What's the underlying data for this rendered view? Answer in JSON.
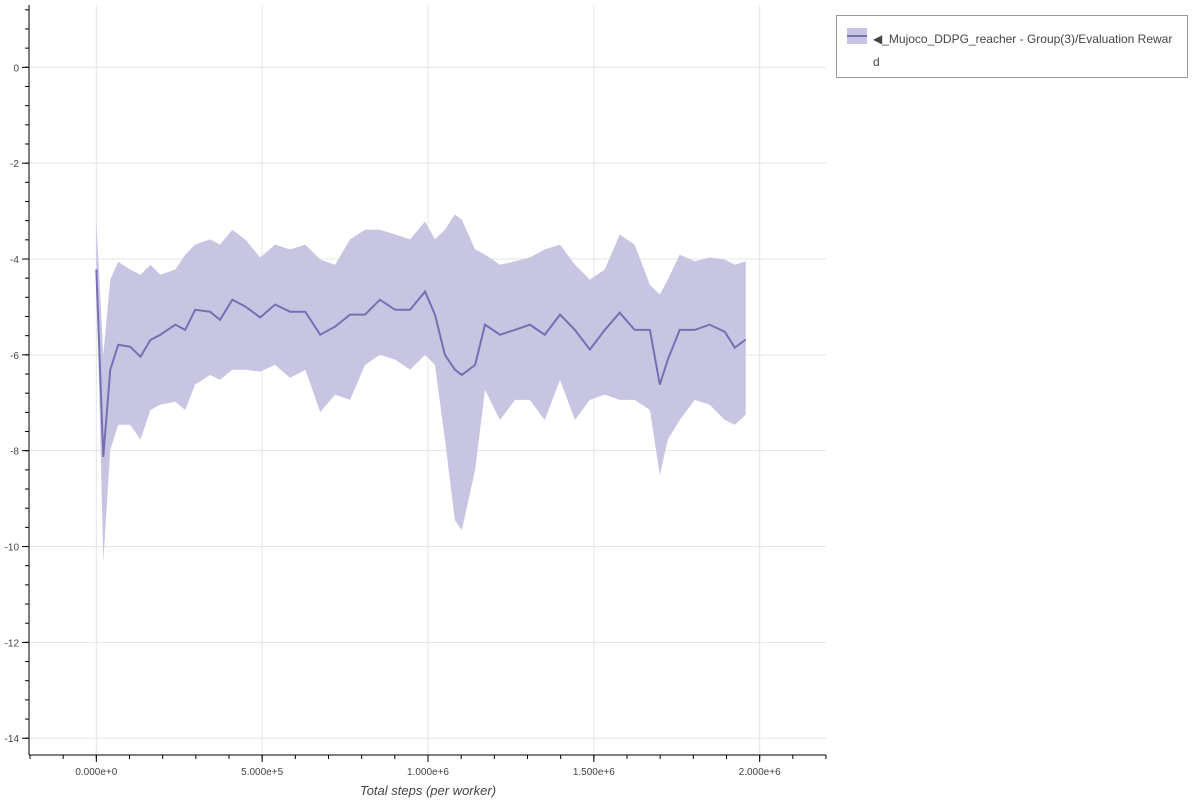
{
  "chart_data": {
    "type": "line",
    "title": "",
    "xlabel": "Total steps (per worker)",
    "ylabel": "",
    "xlim": [
      -200000,
      2200000
    ],
    "ylim": [
      -14.35,
      1.3
    ],
    "x_ticks": [
      0,
      500000,
      1000000,
      1500000,
      2000000
    ],
    "x_tick_labels": [
      "0.000e+0",
      "5.000e+5",
      "1.000e+6",
      "1.500e+6",
      "2.000e+6"
    ],
    "y_ticks": [
      0,
      -2,
      -4,
      -6,
      -8,
      -10,
      -12,
      -14
    ],
    "y_tick_labels": [
      "0",
      "-2",
      "-4",
      "-6",
      "-8",
      "-10",
      "-12",
      "-14"
    ],
    "grid": true,
    "legend_placement": "outside-top-right",
    "colors": {
      "line": "#7570b3",
      "band": "#c8c5e2",
      "grid": "#e5e5e5"
    },
    "series": [
      {
        "name": "◀_Mujoco_DDPG_reacher - Group(3)/Evaluation Reward",
        "x": [
          0,
          21000,
          42000,
          66000,
          102000,
          133000,
          163000,
          193000,
          238000,
          268000,
          298000,
          343000,
          373000,
          410000,
          449000,
          494000,
          539000,
          584000,
          630000,
          675000,
          720000,
          765000,
          810000,
          855000,
          901000,
          946000,
          991000,
          1021000,
          1051000,
          1081000,
          1102000,
          1142000,
          1172000,
          1217000,
          1262000,
          1307000,
          1352000,
          1398000,
          1443000,
          1488000,
          1533000,
          1578000,
          1623000,
          1669000,
          1699000,
          1723000,
          1759000,
          1804000,
          1849000,
          1895000,
          1925000,
          1958000
        ],
        "mean": [
          -4.22,
          -8.13,
          -6.31,
          -5.79,
          -5.83,
          -6.04,
          -5.69,
          -5.58,
          -5.37,
          -5.48,
          -5.06,
          -5.1,
          -5.27,
          -4.85,
          -4.99,
          -5.22,
          -4.95,
          -5.1,
          -5.1,
          -5.58,
          -5.41,
          -5.16,
          -5.16,
          -4.85,
          -5.06,
          -5.06,
          -4.68,
          -5.16,
          -6.0,
          -6.31,
          -6.42,
          -6.21,
          -5.37,
          -5.58,
          -5.48,
          -5.37,
          -5.58,
          -5.16,
          -5.48,
          -5.89,
          -5.48,
          -5.12,
          -5.48,
          -5.48,
          -6.62,
          -6.1,
          -5.48,
          -5.48,
          -5.37,
          -5.52,
          -5.85,
          -5.68
        ],
        "upper": [
          -3.18,
          -6.0,
          -4.43,
          -4.06,
          -4.22,
          -4.33,
          -4.12,
          -4.33,
          -4.22,
          -3.91,
          -3.7,
          -3.59,
          -3.7,
          -3.39,
          -3.59,
          -3.97,
          -3.7,
          -3.8,
          -3.7,
          -4.01,
          -4.12,
          -3.59,
          -3.39,
          -3.39,
          -3.49,
          -3.59,
          -3.22,
          -3.59,
          -3.39,
          -3.07,
          -3.18,
          -3.8,
          -3.91,
          -4.12,
          -4.05,
          -3.97,
          -3.8,
          -3.7,
          -4.12,
          -4.43,
          -4.22,
          -3.49,
          -3.7,
          -4.54,
          -4.74,
          -4.43,
          -3.91,
          -4.05,
          -3.97,
          -4.01,
          -4.12,
          -4.05
        ],
        "lower": [
          -4.26,
          -10.32,
          -7.98,
          -7.46,
          -7.46,
          -7.77,
          -7.15,
          -7.04,
          -6.98,
          -7.15,
          -6.62,
          -6.42,
          -6.52,
          -6.31,
          -6.31,
          -6.35,
          -6.21,
          -6.48,
          -6.31,
          -7.19,
          -6.83,
          -6.94,
          -6.21,
          -6.0,
          -6.1,
          -6.31,
          -6.0,
          -6.21,
          -7.77,
          -9.45,
          -9.66,
          -8.4,
          -6.73,
          -7.36,
          -6.94,
          -6.94,
          -7.36,
          -6.52,
          -7.36,
          -6.94,
          -6.83,
          -6.94,
          -6.94,
          -7.15,
          -8.51,
          -7.77,
          -7.36,
          -6.94,
          -7.04,
          -7.36,
          -7.46,
          -7.25
        ]
      }
    ]
  },
  "legend": {
    "label": "◀_Mujoco_DDPG_reacher - Group(3)/Evaluation Reward"
  }
}
